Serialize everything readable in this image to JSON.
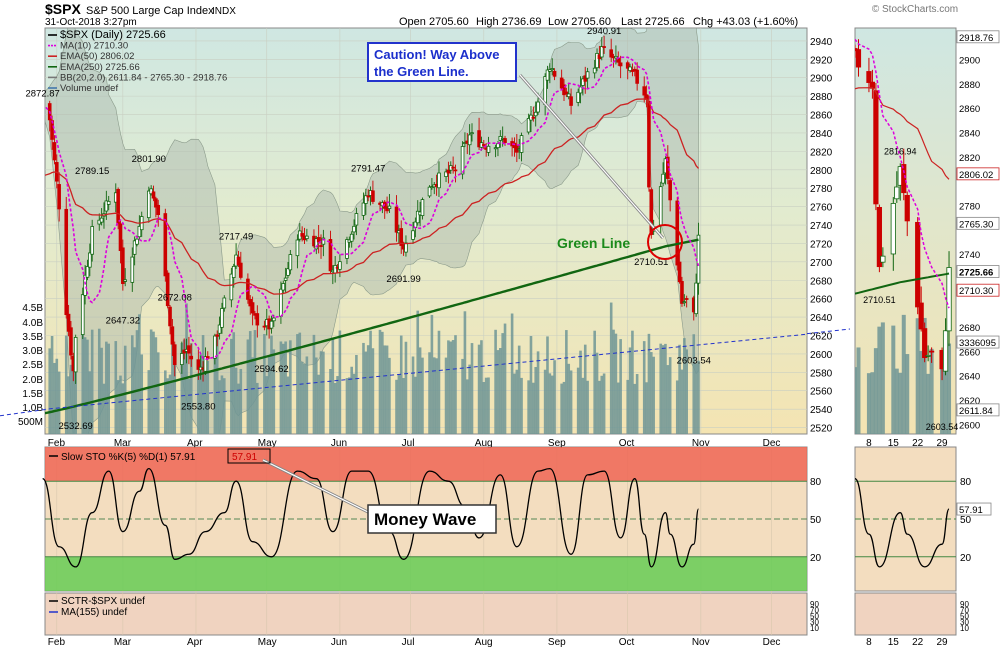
{
  "header": {
    "symbol": "$SPX",
    "name": "S&P 500 Large Cap Index",
    "exchange": "INDX",
    "datetime": "31-Oct-2018 3:27pm",
    "open": "Open 2705.60",
    "high": "High 2736.69",
    "low": "Low 2705.60",
    "last": "Last 2725.66",
    "chg": "Chg +43.03 (+1.60%)",
    "watermark": "© StockCharts.com"
  },
  "legend": [
    {
      "text": "$SPX (Daily) 2725.66",
      "color": "#000000"
    },
    {
      "text": "MA(10) 2710.30",
      "color": "#dd00dd"
    },
    {
      "text": "EMA(50) 2806.02",
      "color": "#cc2222"
    },
    {
      "text": "EMA(250) 2725.66",
      "color": "#116611"
    },
    {
      "text": "BB(20,2.0) 2611.84 - 2765.30 - 2918.76",
      "color": "#777777"
    },
    {
      "text": "Volume undef",
      "color": "#4477aa"
    }
  ],
  "annotations": {
    "caution": [
      "Caution! Way Above",
      "the Green Line."
    ],
    "green_line": "Green Line",
    "money_wave": "Money Wave"
  },
  "colors": {
    "bull": "#116611",
    "bear": "#cc0000",
    "ma10": "#dd00dd",
    "ema50": "#cc2222",
    "ema250": "#116611",
    "volume": "#6f9595",
    "trend": "#2233cc",
    "oversold": "#66cc55",
    "overbought": "#ee6655"
  },
  "lower": {
    "sto_label": "Slow STO %K(5) %D(1) 57.91",
    "sto_value": "57.91",
    "sctr_label": "SCTR-$SPX undef",
    "ma155_label": "MA(155) undef",
    "sto_ticks": [
      "80",
      "50",
      "20"
    ],
    "sctr_ticks": [
      "90",
      "70",
      "50",
      "30",
      "10"
    ]
  },
  "zoom": {
    "price_ticks": [
      "2918.76",
      "2900",
      "2880",
      "2860",
      "2840",
      "2820",
      "2806.02",
      "2780",
      "2765.30",
      "2740",
      "2725.66",
      "2710.30",
      "2680",
      "3336095",
      "2660",
      "2640",
      "2620",
      "2611.84",
      "2600"
    ],
    "labels": [
      "2816.94",
      "2710.51",
      "2603.54"
    ],
    "x_ticks": [
      "8",
      "15",
      "22",
      "29"
    ],
    "sto_value": "57.91"
  },
  "chart_data": {
    "type": "candlestick",
    "title": "$SPX S&P 500 Large Cap Index INDX",
    "ylim": [
      2513,
      2954
    ],
    "y_ticks": [
      2520,
      2540,
      2560,
      2580,
      2600,
      2620,
      2640,
      2660,
      2680,
      2700,
      2720,
      2740,
      2760,
      2780,
      2800,
      2820,
      2840,
      2860,
      2880,
      2900,
      2920,
      2940
    ],
    "volume_ticks": [
      "4.5B",
      "4.0B",
      "3.5B",
      "3.0B",
      "2.5B",
      "2.0B",
      "1.5B",
      "1.0B",
      "500M"
    ],
    "x_ticks": [
      "Feb",
      "Mar",
      "Apr",
      "May",
      "Jun",
      "Jul",
      "Aug",
      "Sep",
      "Oct",
      "Nov",
      "Dec"
    ],
    "price_labels": [
      {
        "text": "2872.87",
        "date": "2018-01-26",
        "value": 2872.87
      },
      {
        "text": "2532.69",
        "date": "2018-02-09",
        "value": 2532.69
      },
      {
        "text": "2789.15",
        "date": "2018-02-16",
        "value": 2789.15
      },
      {
        "text": "2647.32",
        "date": "2018-03-01",
        "value": 2647.32
      },
      {
        "text": "2801.90",
        "date": "2018-03-12",
        "value": 2801.9
      },
      {
        "text": "2672.08",
        "date": "2018-03-23",
        "value": 2672.08
      },
      {
        "text": "2553.80",
        "date": "2018-04-02",
        "value": 2553.8
      },
      {
        "text": "2717.49",
        "date": "2018-04-18",
        "value": 2717.49
      },
      {
        "text": "2594.62",
        "date": "2018-05-03",
        "value": 2594.62
      },
      {
        "text": "2791.47",
        "date": "2018-06-13",
        "value": 2791.47
      },
      {
        "text": "2691.99",
        "date": "2018-06-28",
        "value": 2691.99
      },
      {
        "text": "2940.91",
        "date": "2018-09-21",
        "value": 2940.91
      },
      {
        "text": "2710.51",
        "date": "2018-10-11",
        "value": 2710.51
      },
      {
        "text": "2603.54",
        "date": "2018-10-29",
        "value": 2603.54
      }
    ],
    "price_path": [
      [
        "2018-01-26",
        2872
      ],
      [
        "2018-01-29",
        2855
      ],
      [
        "2018-02-02",
        2762
      ],
      [
        "2018-02-05",
        2648
      ],
      [
        "2018-02-08",
        2581
      ],
      [
        "2018-02-09",
        2620
      ],
      [
        "2018-02-16",
        2732
      ],
      [
        "2018-02-26",
        2779
      ],
      [
        "2018-03-01",
        2677
      ],
      [
        "2018-03-08",
        2738
      ],
      [
        "2018-03-12",
        2783
      ],
      [
        "2018-03-16",
        2752
      ],
      [
        "2018-03-23",
        2588
      ],
      [
        "2018-03-28",
        2605
      ],
      [
        "2018-04-02",
        2581
      ],
      [
        "2018-04-09",
        2613
      ],
      [
        "2018-04-18",
        2708
      ],
      [
        "2018-04-25",
        2639
      ],
      [
        "2018-05-03",
        2629
      ],
      [
        "2018-05-14",
        2730
      ],
      [
        "2018-05-25",
        2721
      ],
      [
        "2018-05-29",
        2689
      ],
      [
        "2018-06-13",
        2776
      ],
      [
        "2018-06-22",
        2754
      ],
      [
        "2018-06-28",
        2716
      ],
      [
        "2018-07-09",
        2784
      ],
      [
        "2018-07-20",
        2801
      ],
      [
        "2018-07-26",
        2837
      ],
      [
        "2018-08-02",
        2827
      ],
      [
        "2018-08-10",
        2833
      ],
      [
        "2018-08-15",
        2818
      ],
      [
        "2018-08-24",
        2874
      ],
      [
        "2018-08-29",
        2914
      ],
      [
        "2018-09-07",
        2871
      ],
      [
        "2018-09-14",
        2904
      ],
      [
        "2018-09-20",
        2930
      ],
      [
        "2018-09-28",
        2913
      ],
      [
        "2018-10-04",
        2901
      ],
      [
        "2018-10-09",
        2880
      ],
      [
        "2018-10-10",
        2785
      ],
      [
        "2018-10-11",
        2728
      ],
      [
        "2018-10-17",
        2809
      ],
      [
        "2018-10-19",
        2767
      ],
      [
        "2018-10-24",
        2656
      ],
      [
        "2018-10-26",
        2658
      ],
      [
        "2018-10-29",
        2641
      ],
      [
        "2018-10-30",
        2682
      ],
      [
        "2018-10-31",
        2725.66
      ]
    ],
    "series": [
      {
        "name": "MA(10)",
        "last": 2710.3
      },
      {
        "name": "EMA(50)",
        "last": 2806.02
      },
      {
        "name": "EMA(250)",
        "last": 2725.66
      },
      {
        "name": "Volume",
        "last": "undef"
      },
      {
        "name": "Slow STO %K(5) %D(1)",
        "last": 57.91
      }
    ],
    "sto_ylim": [
      0,
      100
    ],
    "sto_levels": [
      80,
      50,
      20
    ],
    "sto_path": [
      [
        "2018-01-26",
        82
      ],
      [
        "2018-02-02",
        28
      ],
      [
        "2018-02-09",
        12
      ],
      [
        "2018-02-16",
        55
      ],
      [
        "2018-02-23",
        88
      ],
      [
        "2018-03-01",
        40
      ],
      [
        "2018-03-08",
        72
      ],
      [
        "2018-03-12",
        90
      ],
      [
        "2018-03-19",
        45
      ],
      [
        "2018-03-23",
        18
      ],
      [
        "2018-03-29",
        22
      ],
      [
        "2018-04-05",
        40
      ],
      [
        "2018-04-13",
        55
      ],
      [
        "2018-04-18",
        80
      ],
      [
        "2018-04-25",
        32
      ],
      [
        "2018-05-03",
        20
      ],
      [
        "2018-05-14",
        88
      ],
      [
        "2018-05-22",
        82
      ],
      [
        "2018-05-29",
        40
      ],
      [
        "2018-06-06",
        88
      ],
      [
        "2018-06-13",
        88
      ],
      [
        "2018-06-22",
        40
      ],
      [
        "2018-06-28",
        18
      ],
      [
        "2018-07-09",
        88
      ],
      [
        "2018-07-17",
        80
      ],
      [
        "2018-07-24",
        60
      ],
      [
        "2018-07-30",
        35
      ],
      [
        "2018-08-08",
        85
      ],
      [
        "2018-08-15",
        28
      ],
      [
        "2018-08-24",
        88
      ],
      [
        "2018-08-29",
        90
      ],
      [
        "2018-09-07",
        22
      ],
      [
        "2018-09-14",
        85
      ],
      [
        "2018-09-21",
        88
      ],
      [
        "2018-09-28",
        35
      ],
      [
        "2018-10-04",
        82
      ],
      [
        "2018-10-08",
        38
      ],
      [
        "2018-10-11",
        12
      ],
      [
        "2018-10-17",
        55
      ],
      [
        "2018-10-19",
        38
      ],
      [
        "2018-10-24",
        12
      ],
      [
        "2018-10-29",
        30
      ],
      [
        "2018-10-31",
        57.91
      ]
    ]
  }
}
